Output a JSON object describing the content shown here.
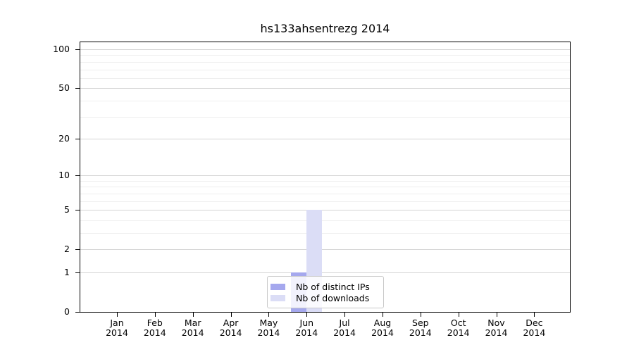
{
  "chart_data": {
    "type": "bar",
    "title": "hs133ahsentrezg 2014",
    "year": "2014",
    "months": [
      "Jan",
      "Feb",
      "Mar",
      "Apr",
      "May",
      "Jun",
      "Jul",
      "Aug",
      "Sep",
      "Oct",
      "Nov",
      "Dec"
    ],
    "series": [
      {
        "name": "Nb of distinct IPs",
        "color": "#a5a8ee",
        "values": [
          0,
          0,
          0,
          0,
          0,
          1,
          0,
          0,
          0,
          0,
          0,
          0
        ]
      },
      {
        "name": "Nb of downloads",
        "color": "#dbddf6",
        "values": [
          0,
          0,
          0,
          0,
          0,
          5,
          0,
          0,
          0,
          0,
          0,
          0
        ]
      }
    ],
    "y_scale": "log1p",
    "ylim": [
      0,
      100
    ],
    "y_ticks": [
      0,
      1,
      2,
      5,
      10,
      20,
      50,
      100
    ],
    "y_minor_gridlines": [
      3,
      4,
      6,
      7,
      8,
      9,
      30,
      40,
      60,
      70,
      80,
      90
    ],
    "legend": {
      "position": "bottom-center",
      "items": [
        "Nb of distinct IPs",
        "Nb of downloads"
      ]
    },
    "colors": {
      "axis": "#000000",
      "text": "#000000",
      "grid_major": "#d4d4d4",
      "grid_minor": "#efefef",
      "legend_border": "#c9c9c9",
      "plot_background": "#ffffff"
    }
  }
}
